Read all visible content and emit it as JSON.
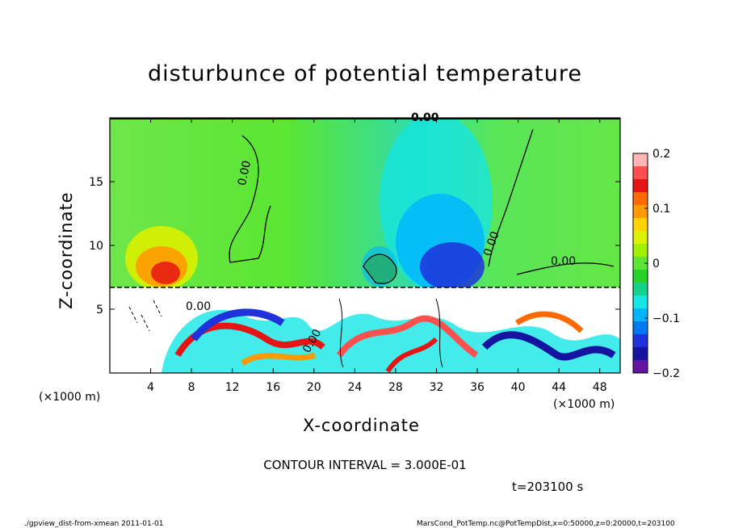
{
  "chart_data": {
    "type": "heatmap",
    "title": "disturbunce of potential temperature",
    "xlabel": "X-coordinate",
    "ylabel": "Z-coordinate",
    "x_units": "(×1000 m)",
    "y_units": "(×1000 m)",
    "xlim": [
      0,
      50
    ],
    "ylim": [
      0,
      20
    ],
    "x_ticks": [
      4,
      8,
      12,
      16,
      20,
      24,
      28,
      32,
      36,
      40,
      44,
      48
    ],
    "y_ticks": [
      5,
      10,
      15
    ],
    "colorbar": {
      "range": [
        -0.2,
        0.2
      ],
      "ticks": [
        "0.2",
        "0.1",
        "0",
        "−0.1",
        "−0.2"
      ],
      "colors": [
        "#ffb4b4",
        "#ff5050",
        "#e61414",
        "#ff6a00",
        "#ff9a00",
        "#ffd200",
        "#dcf000",
        "#a0f000",
        "#5ae632",
        "#28d228",
        "#14d28c",
        "#14e6e6",
        "#00b4ff",
        "#0078f0",
        "#1e32dc",
        "#1414a0",
        "#6414a0"
      ]
    },
    "contour_labels": [
      "0.00",
      "0.00",
      "0.00",
      "0.00",
      "0.00",
      "0.00"
    ],
    "contour_interval_text": "CONTOUR INTERVAL = 3.000E-01",
    "time_text": "t=203100 s",
    "footer_left": "./gpview_dist-from-xmean  2011-01-01",
    "footer_right": "MarsCond_PotTemp.nc@PotTempDist,x=0:50000,z=0:20000,t=203100"
  }
}
